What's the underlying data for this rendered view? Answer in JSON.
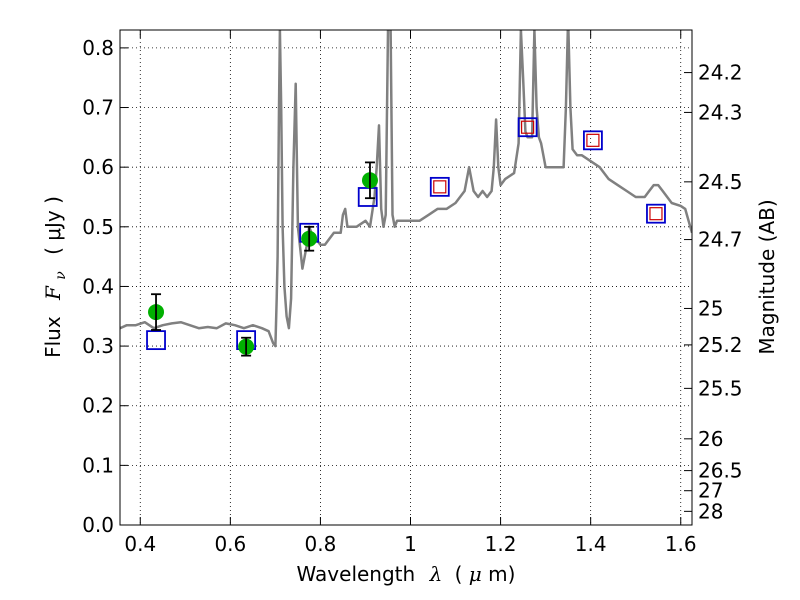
{
  "chart_data": {
    "type": "scatter",
    "xlabel_prefix": "Wavelength",
    "xlabel_symbol": "λ",
    "xlabel_unit_open": "(",
    "xlabel_unit_mu": "μ",
    "xlabel_unit_rest": "m)",
    "ylabel_prefix": "Flux",
    "ylabel_symbol": "F",
    "ylabel_subscript": "ν",
    "ylabel_unit": "( μJy )",
    "y2label": "Magnitude (AB)",
    "xlim": [
      0.355,
      1.625
    ],
    "ylim": [
      0.0,
      0.83
    ],
    "grid": true,
    "grid_style": "dotted",
    "x_ticks": [
      0.4,
      0.6,
      0.8,
      1.0,
      1.2,
      1.4,
      1.6
    ],
    "x_tick_labels": [
      "0.4",
      "0.6",
      "0.8",
      "1",
      "1.2",
      "1.4",
      "1.6"
    ],
    "y_ticks": [
      0.0,
      0.1,
      0.2,
      0.3,
      0.4,
      0.5,
      0.6,
      0.7,
      0.8
    ],
    "y_tick_labels": [
      "0.0",
      "0.1",
      "0.2",
      "0.3",
      "0.4",
      "0.5",
      "0.6",
      "0.7",
      "0.8"
    ],
    "y2_ticks": [
      {
        "label": "24.2",
        "flux": 0.7586
      },
      {
        "label": "24.3",
        "flux": 0.6918
      },
      {
        "label": "24.5",
        "flux": 0.5754
      },
      {
        "label": "24.7",
        "flux": 0.4786
      },
      {
        "label": "25",
        "flux": 0.3631
      },
      {
        "label": "25.2",
        "flux": 0.302
      },
      {
        "label": "25.5",
        "flux": 0.2291
      },
      {
        "label": "26",
        "flux": 0.1445
      },
      {
        "label": "26.5",
        "flux": 0.0912
      },
      {
        "label": "27",
        "flux": 0.0575
      },
      {
        "label": "28",
        "flux": 0.0229
      }
    ],
    "spectrum": {
      "color": "#808080",
      "x": [
        0.355,
        0.37,
        0.39,
        0.41,
        0.43,
        0.45,
        0.47,
        0.49,
        0.51,
        0.53,
        0.55,
        0.57,
        0.59,
        0.61,
        0.63,
        0.65,
        0.67,
        0.685,
        0.695,
        0.7,
        0.703,
        0.705,
        0.708,
        0.71,
        0.713,
        0.716,
        0.72,
        0.725,
        0.73,
        0.735,
        0.74,
        0.745,
        0.75,
        0.76,
        0.77,
        0.775,
        0.78,
        0.79,
        0.8,
        0.81,
        0.82,
        0.83,
        0.845,
        0.85,
        0.855,
        0.86,
        0.87,
        0.88,
        0.9,
        0.91,
        0.92,
        0.925,
        0.93,
        0.935,
        0.94,
        0.945,
        0.95,
        0.955,
        0.96,
        0.965,
        0.97,
        0.98,
        1.0,
        1.02,
        1.04,
        1.06,
        1.08,
        1.1,
        1.12,
        1.13,
        1.14,
        1.15,
        1.16,
        1.17,
        1.18,
        1.185,
        1.19,
        1.195,
        1.2,
        1.21,
        1.23,
        1.24,
        1.245,
        1.25,
        1.255,
        1.26,
        1.27,
        1.275,
        1.28,
        1.285,
        1.29,
        1.3,
        1.32,
        1.34,
        1.345,
        1.35,
        1.355,
        1.36,
        1.37,
        1.38,
        1.4,
        1.42,
        1.44,
        1.46,
        1.48,
        1.5,
        1.52,
        1.53,
        1.54,
        1.55,
        1.56,
        1.57,
        1.58,
        1.6,
        1.61,
        1.625
      ],
      "y": [
        0.33,
        0.335,
        0.335,
        0.34,
        0.33,
        0.335,
        0.338,
        0.34,
        0.335,
        0.33,
        0.332,
        0.33,
        0.338,
        0.335,
        0.33,
        0.335,
        0.33,
        0.325,
        0.305,
        0.3,
        0.38,
        0.45,
        0.7,
        0.83,
        0.7,
        0.5,
        0.4,
        0.35,
        0.33,
        0.38,
        0.6,
        0.74,
        0.5,
        0.43,
        0.47,
        0.5,
        0.49,
        0.48,
        0.47,
        0.47,
        0.48,
        0.49,
        0.49,
        0.52,
        0.53,
        0.5,
        0.5,
        0.5,
        0.51,
        0.5,
        0.55,
        0.6,
        0.67,
        0.53,
        0.5,
        0.52,
        0.83,
        0.9,
        0.52,
        0.5,
        0.51,
        0.51,
        0.51,
        0.51,
        0.52,
        0.53,
        0.53,
        0.54,
        0.56,
        0.6,
        0.56,
        0.55,
        0.56,
        0.55,
        0.56,
        0.6,
        0.68,
        0.6,
        0.57,
        0.58,
        0.59,
        0.64,
        0.83,
        0.75,
        0.66,
        0.65,
        0.65,
        0.83,
        0.7,
        0.65,
        0.64,
        0.6,
        0.6,
        0.6,
        0.7,
        0.85,
        0.7,
        0.63,
        0.62,
        0.62,
        0.61,
        0.6,
        0.58,
        0.57,
        0.56,
        0.55,
        0.55,
        0.56,
        0.57,
        0.57,
        0.56,
        0.55,
        0.54,
        0.535,
        0.53,
        0.49
      ]
    },
    "photometry": {
      "color": "#00b000",
      "errorbar_color": "#000000",
      "x": [
        0.435,
        0.635,
        0.775,
        0.91
      ],
      "y": [
        0.357,
        0.299,
        0.48,
        0.578
      ],
      "yerr": [
        0.03,
        0.015,
        0.02,
        0.03
      ]
    },
    "model_blue_squares": {
      "edge_color": "#0000cc",
      "x": [
        0.435,
        0.635,
        0.775,
        0.905
      ],
      "y": [
        0.31,
        0.31,
        0.49,
        0.55
      ]
    },
    "model_red_blue_squares": {
      "outer_color": "#0000cc",
      "inner_color": "#cc0000",
      "x": [
        1.065,
        1.26,
        1.405,
        1.545
      ],
      "y": [
        0.567,
        0.667,
        0.645,
        0.522
      ]
    }
  }
}
